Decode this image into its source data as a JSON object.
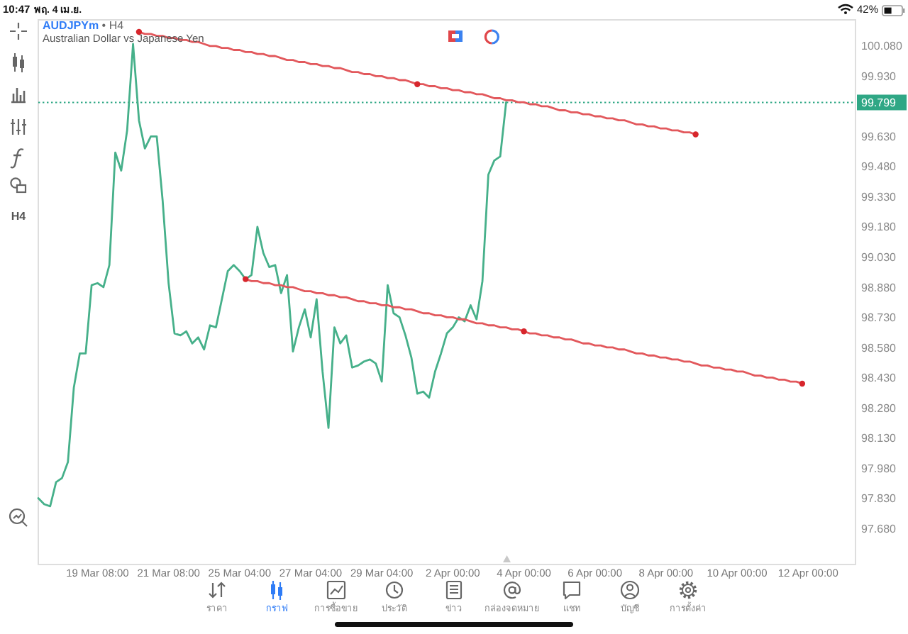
{
  "chart_data": {
    "type": "line",
    "title": "AUDJPYm • H4",
    "subtitle": "Australian Dollar vs Japanese Yen",
    "categories": [
      null,
      null,
      null,
      null,
      null,
      null,
      null,
      null,
      null,
      null,
      "19 Mar 08:00",
      null,
      null,
      null,
      null,
      null,
      null,
      null,
      null,
      null,
      null,
      null,
      "21 Mar 08:00",
      null,
      null,
      null,
      null,
      null,
      null,
      null,
      null,
      null,
      null,
      null,
      "25 Mar 04:00",
      null,
      null,
      null,
      null,
      null,
      null,
      null,
      null,
      null,
      null,
      null,
      "27 Mar 04:00",
      null,
      null,
      null,
      null,
      null,
      null,
      null,
      null,
      null,
      null,
      null,
      "29 Mar 04:00",
      null,
      null,
      null,
      null,
      null,
      null,
      null,
      null,
      null,
      null,
      null,
      "2 Apr 00:00",
      null,
      null,
      null,
      null,
      null,
      null,
      null,
      null,
      null,
      null,
      null,
      "4 Apr 00:00",
      null,
      null,
      null,
      null,
      null,
      null,
      null,
      null,
      null,
      null,
      null,
      "6 Apr 00:00",
      null,
      null,
      null,
      null,
      null,
      null,
      null,
      null,
      null,
      null,
      null,
      "8 Apr 00:00",
      null,
      null,
      null,
      null,
      null,
      null,
      null,
      null,
      null,
      null,
      null,
      "10 Apr 00:00",
      null,
      null,
      null,
      null,
      null,
      null,
      null,
      null,
      null,
      null,
      null,
      "12 Apr 00:00",
      null,
      null,
      null,
      null,
      null,
      null,
      null,
      null
    ],
    "series": [
      {
        "color": "#46b08a",
        "values": [
          97.83,
          97.8,
          97.79,
          97.91,
          97.93,
          98.01,
          98.38,
          98.55,
          98.55,
          98.89,
          98.9,
          98.88,
          98.99,
          99.55,
          99.46,
          99.66,
          100.09,
          99.71,
          99.57,
          99.63,
          99.63,
          99.31,
          98.9,
          98.65,
          98.64,
          98.66,
          98.6,
          98.63,
          98.57,
          98.69,
          98.68,
          98.82,
          98.96,
          98.99,
          98.96,
          98.92,
          98.94,
          99.18,
          99.05,
          98.98,
          98.99,
          98.85,
          98.94,
          98.56,
          98.68,
          98.77,
          98.63,
          98.82,
          98.46,
          98.18,
          98.68,
          98.6,
          98.64,
          98.48,
          98.49,
          98.51,
          98.52,
          98.5,
          98.41,
          98.89,
          98.75,
          98.73,
          98.64,
          98.53,
          98.35,
          98.36,
          98.33,
          98.46,
          98.55,
          98.65,
          98.68,
          98.73,
          98.71,
          98.79,
          98.72,
          98.91,
          99.44,
          99.51,
          99.53,
          99.799,
          null,
          null,
          null,
          null,
          null,
          null,
          null,
          null,
          null,
          null,
          null,
          null,
          null,
          null,
          null,
          null,
          null,
          null,
          null,
          null,
          null,
          null,
          null,
          null,
          null,
          null,
          null,
          null,
          null,
          null,
          null,
          null,
          null,
          null,
          null,
          null,
          null,
          null,
          null,
          null,
          null,
          null,
          null,
          null,
          null,
          null,
          null,
          null,
          null,
          null,
          null,
          null,
          null,
          null,
          null,
          null,
          null,
          null,
          null
        ]
      },
      {
        "color": "#e2585c",
        "values": [
          null,
          null,
          null,
          null,
          null,
          null,
          null,
          null,
          null,
          null,
          null,
          null,
          null,
          null,
          null,
          null,
          null,
          100.15,
          100.14,
          100.14,
          100.13,
          100.13,
          100.12,
          100.12,
          100.11,
          100.11,
          100.1,
          100.1,
          100.09,
          100.08,
          100.08,
          100.07,
          100.07,
          100.06,
          100.06,
          100.05,
          100.05,
          100.04,
          100.04,
          100.03,
          100.03,
          100.02,
          100.01,
          100.01,
          100.0,
          100.0,
          99.99,
          99.99,
          99.98,
          99.98,
          99.97,
          99.97,
          99.96,
          99.95,
          99.95,
          99.94,
          99.94,
          99.93,
          99.93,
          99.92,
          99.92,
          99.91,
          99.91,
          99.9,
          99.89,
          99.89,
          99.88,
          99.88,
          99.87,
          99.87,
          99.86,
          99.86,
          99.85,
          99.85,
          99.84,
          99.84,
          99.83,
          99.82,
          99.82,
          99.81,
          99.81,
          99.8,
          99.8,
          99.79,
          99.79,
          99.78,
          99.78,
          99.77,
          99.76,
          99.76,
          99.75,
          99.75,
          99.74,
          99.74,
          99.73,
          99.73,
          99.72,
          99.72,
          99.71,
          99.71,
          99.7,
          99.69,
          99.69,
          99.68,
          99.68,
          99.67,
          99.67,
          99.66,
          99.66,
          99.65,
          99.65,
          99.64,
          null,
          null,
          null,
          null,
          null,
          null,
          null,
          null,
          null,
          null,
          null,
          null,
          null,
          null,
          null,
          null,
          null,
          null,
          null,
          null,
          null,
          null,
          null,
          null,
          null,
          null,
          null
        ]
      },
      {
        "color": "#e2585c",
        "values": [
          null,
          null,
          null,
          null,
          null,
          null,
          null,
          null,
          null,
          null,
          null,
          null,
          null,
          null,
          null,
          null,
          null,
          null,
          null,
          null,
          null,
          null,
          null,
          null,
          null,
          null,
          null,
          null,
          null,
          null,
          null,
          null,
          null,
          null,
          null,
          98.92,
          98.91,
          98.91,
          98.9,
          98.9,
          98.89,
          98.89,
          98.88,
          98.88,
          98.87,
          98.86,
          98.86,
          98.85,
          98.85,
          98.84,
          98.84,
          98.83,
          98.83,
          98.82,
          98.81,
          98.81,
          98.8,
          98.8,
          98.79,
          98.79,
          98.78,
          98.78,
          98.77,
          98.77,
          98.76,
          98.75,
          98.75,
          98.74,
          98.74,
          98.73,
          98.73,
          98.72,
          98.72,
          98.71,
          98.7,
          98.7,
          98.69,
          98.69,
          98.68,
          98.68,
          98.67,
          98.67,
          98.66,
          98.65,
          98.65,
          98.64,
          98.64,
          98.63,
          98.63,
          98.62,
          98.62,
          98.61,
          98.6,
          98.6,
          98.59,
          98.59,
          98.58,
          98.58,
          98.57,
          98.57,
          98.56,
          98.55,
          98.55,
          98.54,
          98.54,
          98.53,
          98.53,
          98.52,
          98.52,
          98.51,
          98.51,
          98.5,
          98.49,
          98.49,
          98.48,
          98.48,
          98.47,
          98.47,
          98.46,
          98.46,
          98.45,
          98.44,
          98.44,
          98.43,
          98.43,
          98.42,
          98.42,
          98.41,
          98.41,
          98.4,
          null,
          null,
          null,
          null,
          null,
          null,
          null,
          null,
          null
        ]
      },
      {
        "type": "scatter",
        "color": "#d7262c",
        "marker": "circle",
        "values": [
          null,
          null,
          null,
          null,
          null,
          null,
          null,
          null,
          null,
          null,
          null,
          null,
          null,
          null,
          null,
          null,
          null,
          100.15,
          null,
          null,
          null,
          null,
          null,
          null,
          null,
          null,
          null,
          null,
          null,
          null,
          null,
          null,
          null,
          null,
          null,
          98.92,
          null,
          null,
          null,
          null,
          null,
          null,
          null,
          null,
          null,
          null,
          null,
          null,
          null,
          null,
          null,
          null,
          null,
          null,
          null,
          null,
          null,
          null,
          null,
          null,
          null,
          null,
          null,
          null,
          99.89,
          null,
          null,
          null,
          null,
          null,
          null,
          null,
          null,
          null,
          null,
          null,
          null,
          null,
          null,
          null,
          null,
          null,
          98.66,
          null,
          null,
          null,
          null,
          null,
          null,
          null,
          null,
          null,
          null,
          null,
          null,
          null,
          null,
          null,
          null,
          null,
          null,
          null,
          null,
          null,
          null,
          null,
          null,
          null,
          null,
          null,
          null,
          99.64,
          null,
          null,
          null,
          null,
          null,
          null,
          null,
          null,
          null,
          null,
          null,
          null,
          null,
          null,
          null,
          null,
          null,
          98.4,
          null,
          null,
          null,
          null,
          null,
          null,
          null,
          null,
          null
        ]
      }
    ],
    "ylim": [
      97.5,
      100.21
    ],
    "yticks": [
      {
        "value": 100.08,
        "label": "100.080"
      },
      {
        "value": 99.93,
        "label": "99.930"
      },
      {
        "value": 99.63,
        "label": "99.630"
      },
      {
        "value": 99.48,
        "label": "99.480"
      },
      {
        "value": 99.33,
        "label": "99.330"
      },
      {
        "value": 99.18,
        "label": "99.180"
      },
      {
        "value": 99.03,
        "label": "99.030"
      },
      {
        "value": 98.88,
        "label": "98.880"
      },
      {
        "value": 98.73,
        "label": "98.730"
      },
      {
        "value": 98.58,
        "label": "98.580"
      },
      {
        "value": 98.43,
        "label": "98.430"
      },
      {
        "value": 98.28,
        "label": "98.280"
      },
      {
        "value": 98.13,
        "label": "98.130"
      },
      {
        "value": 97.98,
        "label": "97.980"
      },
      {
        "value": 97.83,
        "label": "97.830"
      },
      {
        "value": 97.68,
        "label": "97.680"
      }
    ],
    "ref_lines": [
      {
        "axis": "y",
        "value": 99.799,
        "label": "99.799",
        "color": "#2fa785",
        "line_style": "dotted"
      }
    ],
    "annotations": [
      "10:47",
      "พฤ. 4 เม.ย.",
      "42%",
      "H4",
      "ราคา",
      "กราฟ",
      "การซื้อขาย",
      "ประวัติ",
      "ข่าว",
      "กล่องจดหมาย",
      "แชท",
      "บัญชี",
      "การตั้งค่า"
    ]
  }
}
